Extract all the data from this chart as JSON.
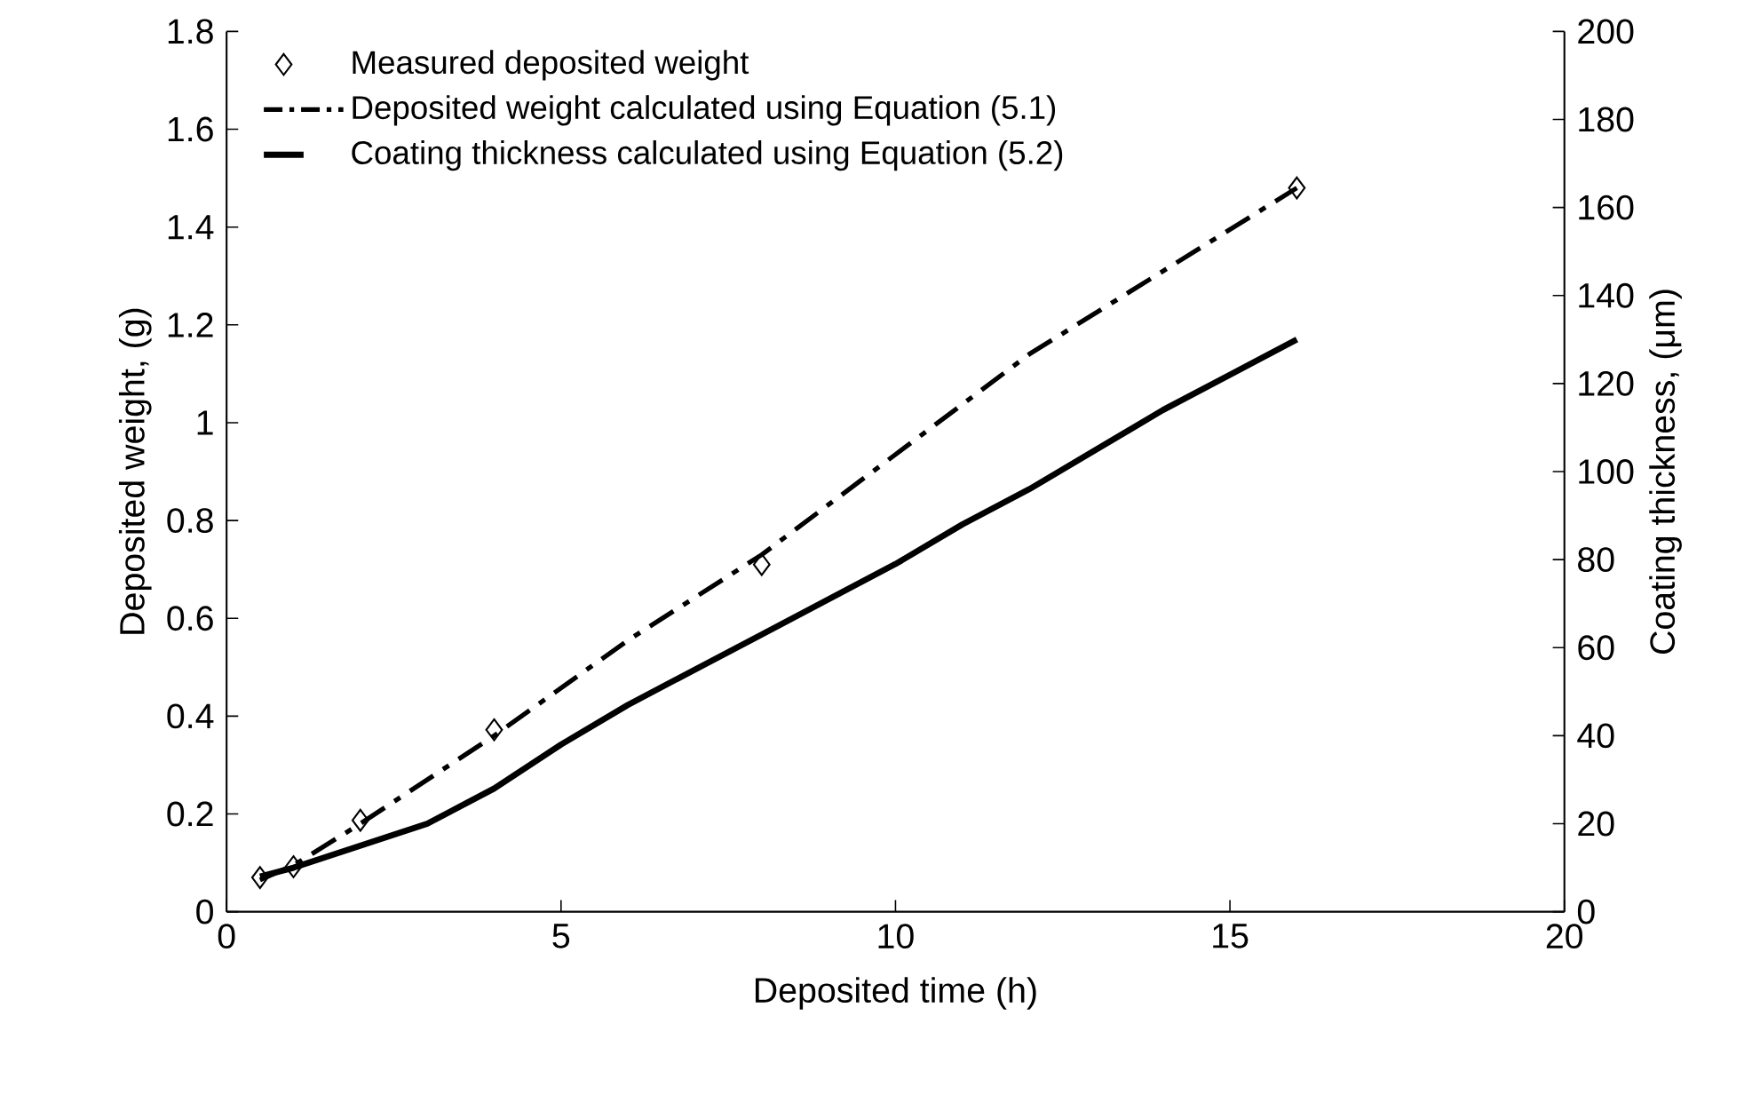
{
  "chart_data": {
    "type": "line",
    "xlabel": "Deposited time (h)",
    "ylabel": "Deposited weight, (g)",
    "y2label": "Coating thickness, (μm)",
    "xlim": [
      0,
      20
    ],
    "xticks": [
      0,
      5,
      10,
      15,
      20
    ],
    "ylim": [
      0,
      1.8
    ],
    "yticks": [
      0,
      0.2,
      0.4,
      0.6,
      0.8,
      1,
      1.2,
      1.4,
      1.6,
      1.8
    ],
    "y2lim": [
      0,
      200
    ],
    "y2ticks": [
      0,
      20,
      40,
      60,
      80,
      100,
      120,
      140,
      160,
      180,
      200
    ],
    "legend": "top left",
    "grid": false,
    "series": [
      {
        "name": "Measured deposited weight",
        "type": "scatter",
        "marker": "diamond",
        "color": "#000000",
        "x": [
          0.5,
          1,
          2,
          4,
          8,
          16
        ],
        "values": [
          0.07,
          0.092,
          0.187,
          0.372,
          0.71,
          1.48
        ]
      },
      {
        "name": "Deposited weight calculated using Equation (5.1)",
        "line_style": "dashdot",
        "marker": "none",
        "color": "#000000",
        "x": [
          0.5,
          1,
          2,
          4,
          6,
          8,
          10,
          12,
          14,
          16
        ],
        "values": [
          0.065,
          0.095,
          0.18,
          0.36,
          0.555,
          0.73,
          0.935,
          1.14,
          1.31,
          1.48
        ]
      },
      {
        "name": "Coating thickness calculated using Equation (5.2)",
        "line_style": "solid",
        "marker": "none",
        "axis": "y2",
        "color": "#000000",
        "x": [
          0.5,
          1,
          2,
          3,
          4,
          5,
          6,
          7,
          8,
          9,
          10,
          11,
          12,
          13,
          14,
          15,
          16
        ],
        "values": [
          8,
          10,
          15,
          20,
          28,
          38,
          47,
          55,
          63,
          71,
          79,
          88,
          96,
          105,
          114,
          122,
          130
        ]
      }
    ]
  }
}
